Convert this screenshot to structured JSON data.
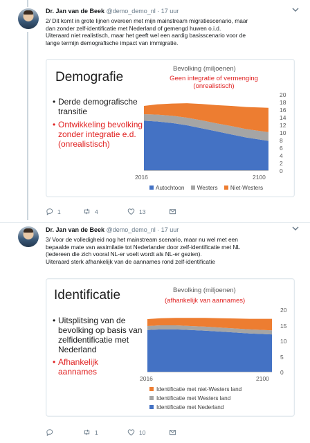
{
  "tweets": [
    {
      "author_name": "Dr. Jan van de Beek",
      "handle": "@demo_demo_nl",
      "separator": "·",
      "time": "17 uur",
      "lines": [
        "2/ Dit komt in grote lijnen overeen met mijn mainstream migratiescenario, maar",
        "dan zonder zelf-identificatie met Nederland of gemengd huwen o.i.d.",
        "Uiteraard niet realistisch, maar het geeft wel een aardig basisscenario voor de",
        "lange termijn demografische impact van immigratie."
      ],
      "slide": {
        "title": "Demografie",
        "chart_title": "Bevolking (miljoenen)",
        "chart_subtitle": "Geen integratie of vermenging (onrealistisch)",
        "bullets_black": "Derde demografische transitie",
        "bullets_red": "Ontwikkeling bevolking zonder integratie e.d. (onrealistisch)"
      },
      "actions": {
        "replies": "1",
        "retweets": "4",
        "likes": "13"
      }
    },
    {
      "author_name": "Dr. Jan van de Beek",
      "handle": "@demo_demo_nl",
      "separator": "·",
      "time": "17 uur",
      "lines": [
        "3/ Voor de volledigheid nog het mainstream scenario, maar nu wel met een",
        "bepaalde mate van assimilatie tot Nederlander door zelf-identificatie met NL",
        "(iedereen die zich vooral NL-er voelt wordt als NL-er gezien).",
        "Uiteraard sterk afhankelijk van de aannames rond zelf-identificatie"
      ],
      "slide": {
        "title": "Identificatie",
        "chart_title": "Bevolking (miljoenen)",
        "chart_subtitle": "(afhankelijk van aannames)",
        "bullets_black": "Uitsplitsing van de bevolking op basis van zelfidentificatie met Nederland",
        "bullets_red": "Afhankelijk aannames"
      },
      "actions": {
        "replies": "",
        "retweets": "1",
        "likes": "10"
      }
    }
  ],
  "colors": {
    "blue": "#4472c4",
    "gray": "#a5a5a5",
    "orange": "#ed7d31",
    "accent_red": "#e02020",
    "like_red": "#e0245e"
  },
  "chart_data": [
    {
      "type": "area",
      "stacked": true,
      "x": [
        2016,
        2025,
        2035,
        2045,
        2055,
        2065,
        2075,
        2085,
        2100
      ],
      "xticks": [
        "2016",
        "2100"
      ],
      "ylim": [
        0,
        20
      ],
      "yticks": [
        "0",
        "2",
        "4",
        "6",
        "8",
        "10",
        "12",
        "14",
        "16",
        "18",
        "20"
      ],
      "series": [
        {
          "name": "Autochtoon",
          "color": "#4472c4",
          "values": [
            13.2,
            13.0,
            12.6,
            12.0,
            11.2,
            10.4,
            9.6,
            8.8,
            7.9
          ]
        },
        {
          "name": "Westers",
          "color": "#a5a5a5",
          "values": [
            1.7,
            1.8,
            1.9,
            2.0,
            2.1,
            2.1,
            2.2,
            2.2,
            2.3
          ]
        },
        {
          "name": "Niet-Westers",
          "color": "#ed7d31",
          "values": [
            2.2,
            2.7,
            3.2,
            3.8,
            4.3,
            4.8,
            5.3,
            5.8,
            6.4
          ]
        }
      ],
      "legend": "bottom"
    },
    {
      "type": "area",
      "stacked": true,
      "x": [
        2016,
        2025,
        2035,
        2045,
        2055,
        2065,
        2075,
        2085,
        2100
      ],
      "xticks": [
        "2016",
        "2100"
      ],
      "ylim": [
        0,
        20
      ],
      "yticks": [
        "0",
        "5",
        "10",
        "15",
        "20"
      ],
      "series": [
        {
          "name": "Identificatie met Nederland",
          "color": "#4472c4",
          "values": [
            13.6,
            13.8,
            13.8,
            13.6,
            13.4,
            13.1,
            12.8,
            12.5,
            12.2
          ]
        },
        {
          "name": "Identificatie met Westers land",
          "color": "#a5a5a5",
          "values": [
            1.3,
            1.3,
            1.3,
            1.3,
            1.3,
            1.3,
            1.3,
            1.3,
            1.3
          ]
        },
        {
          "name": "Identificatie met niet-Westers land",
          "color": "#ed7d31",
          "values": [
            2.2,
            2.3,
            2.4,
            2.6,
            2.8,
            3.0,
            3.2,
            3.4,
            3.7
          ]
        }
      ],
      "legend": "bottom",
      "legend_order_top_to_bottom": [
        "Identificatie met niet-Westers land",
        "Identificatie met Westers land",
        "Identificatie met Nederland"
      ]
    }
  ]
}
